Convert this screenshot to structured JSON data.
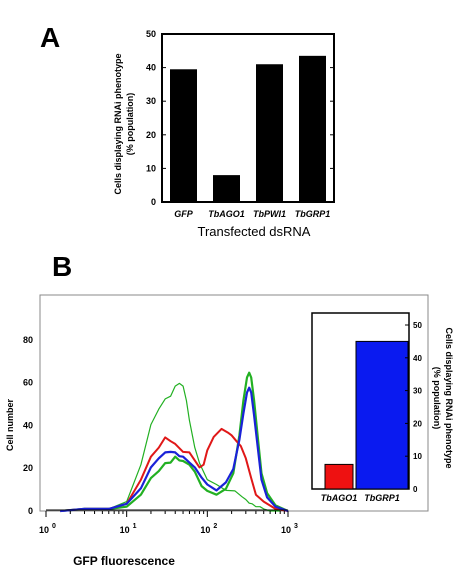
{
  "chart_data": [
    {
      "panel_label": "A",
      "type": "bar",
      "categories": [
        "GFP",
        "TbAGO1",
        "TbPWI1",
        "TbGRP1"
      ],
      "values": [
        39.5,
        8,
        41,
        43.5
      ],
      "ylabel_lines": [
        "Cells displaying RNAi phenotype",
        "(% population)"
      ],
      "xlabel": "Transfected dsRNA",
      "ylim": [
        0,
        50
      ],
      "yticks": [
        "0",
        "10",
        "20",
        "30",
        "40",
        "50"
      ],
      "colors": [
        "#000000",
        "#000000",
        "#000000",
        "#000000"
      ]
    },
    {
      "panel_label": "B",
      "type": "line",
      "xlabel": "GFP fluorescence",
      "ylabel": "Cell number",
      "xscale": "log",
      "xlim": [
        1,
        1000
      ],
      "ylim": [
        0,
        100
      ],
      "yticks": [
        "0",
        "20",
        "40",
        "60",
        "80"
      ],
      "xticks": [
        {
          "value": 1,
          "mantissa": "10",
          "exponent": "0"
        },
        {
          "value": 10,
          "mantissa": "10",
          "exponent": "1"
        },
        {
          "value": 100,
          "mantissa": "10",
          "exponent": "2"
        },
        {
          "value": 1000,
          "mantissa": "10",
          "exponent": "3"
        }
      ],
      "series": [
        {
          "color": "#22b022",
          "width": 1.2,
          "x": [
            1.5,
            3,
            6,
            10,
            15,
            20,
            25,
            30,
            35,
            40,
            45,
            50,
            55,
            60,
            70,
            80,
            100,
            130,
            170,
            220,
            270,
            300,
            330,
            360,
            400,
            450,
            500,
            600,
            800
          ],
          "y": [
            0,
            1,
            1,
            4,
            22,
            40,
            48,
            52,
            54,
            58,
            60,
            58,
            52,
            42,
            30,
            22,
            15,
            12,
            10,
            9,
            7,
            5,
            4,
            3,
            2,
            2,
            1,
            0,
            0
          ]
        },
        {
          "color": "#22b022",
          "width": 2.2,
          "x": [
            1.5,
            3,
            6,
            10,
            15,
            20,
            25,
            30,
            35,
            40,
            45,
            50,
            60,
            70,
            85,
            100,
            130,
            170,
            210,
            250,
            280,
            310,
            330,
            350,
            380,
            420,
            470,
            550,
            700,
            1000
          ],
          "y": [
            0,
            1,
            1,
            2,
            8,
            15,
            19,
            22,
            23,
            25,
            24,
            23,
            22,
            18,
            12,
            9,
            8,
            10,
            18,
            35,
            52,
            62,
            65,
            62,
            52,
            35,
            18,
            8,
            3,
            0
          ]
        },
        {
          "color": "#e01818",
          "width": 2.0,
          "x": [
            1.5,
            3,
            6,
            10,
            15,
            20,
            25,
            30,
            35,
            40,
            50,
            60,
            70,
            80,
            90,
            100,
            120,
            150,
            180,
            200,
            230,
            260,
            300,
            350,
            400,
            500,
            700,
            1000
          ],
          "y": [
            0,
            1,
            1,
            3,
            15,
            25,
            30,
            34,
            33,
            31,
            28,
            27,
            24,
            20,
            22,
            28,
            35,
            38,
            37,
            35,
            33,
            30,
            25,
            15,
            8,
            4,
            1,
            0
          ]
        },
        {
          "color": "#1a22d8",
          "width": 2.2,
          "x": [
            1.5,
            3,
            6,
            10,
            15,
            20,
            25,
            30,
            35,
            40,
            45,
            50,
            60,
            70,
            85,
            100,
            130,
            170,
            210,
            250,
            280,
            310,
            330,
            350,
            380,
            420,
            470,
            550,
            700,
            1000
          ],
          "y": [
            0,
            1,
            1,
            3,
            11,
            20,
            25,
            27,
            28,
            27,
            26,
            25,
            23,
            20,
            16,
            12,
            10,
            13,
            20,
            33,
            46,
            55,
            58,
            55,
            45,
            30,
            15,
            6,
            2,
            0
          ]
        }
      ]
    },
    {
      "type": "bar",
      "categories": [
        "TbAGO1",
        "TbGRP1"
      ],
      "values": [
        7.5,
        45
      ],
      "colors": [
        "#ee1111",
        "#0a1af0"
      ],
      "ylabel_lines": [
        "Cells displaying RNAi phenotype",
        "(% population)"
      ],
      "ylim": [
        0,
        50
      ],
      "yticks": [
        "0",
        "10",
        "20",
        "30",
        "40",
        "50"
      ]
    }
  ]
}
